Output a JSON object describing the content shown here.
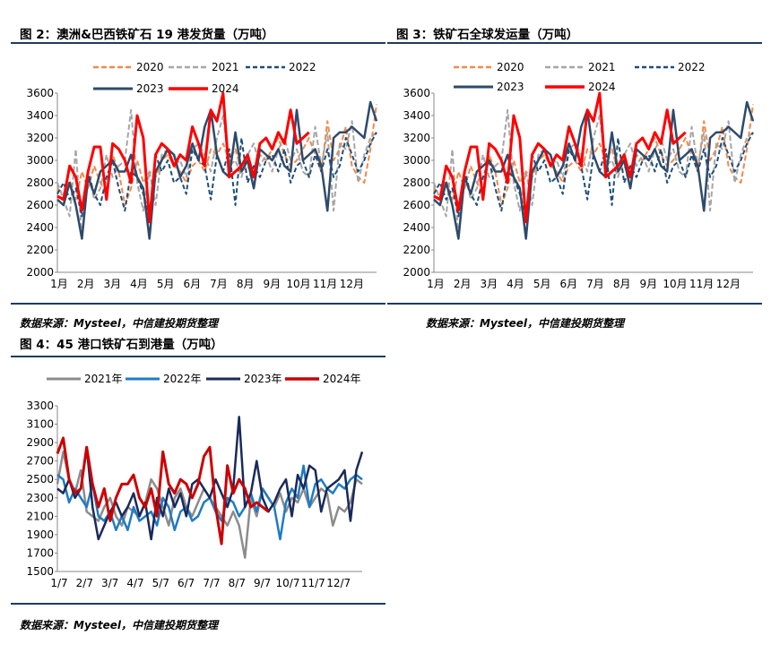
{
  "figures": [
    {
      "id": "fig2",
      "title": "图 2：澳洲&巴西铁矿石 19 港发货量（万吨）",
      "source": "数据来源：Mysteel，中信建投期货整理"
    },
    {
      "id": "fig3",
      "title": "图 3：铁矿石全球发运量（万吨）",
      "source": "数据来源：Mysteel，中信建投期货整理"
    },
    {
      "id": "fig4",
      "title": "图 4：45 港口铁矿石到港量（万吨）",
      "source": "数据来源：Mysteel，中信建投期货整理"
    }
  ],
  "chart_data": [
    {
      "type": "line",
      "title": "图 2：澳洲&巴西铁矿石 19 港发货量（万吨）",
      "x_ticks": [
        "1月",
        "2月",
        "3月",
        "4月",
        "5月",
        "6月",
        "7月",
        "8月",
        "9月",
        "10月",
        "11月",
        "12月"
      ],
      "x_range": [
        1,
        53
      ],
      "ylim": [
        2000,
        3600
      ],
      "y_ticks": [
        2000,
        2200,
        2400,
        2600,
        2800,
        3000,
        3200,
        3400,
        3600
      ],
      "legend_placement": "top",
      "series": [
        {
          "name": "2020",
          "color": "#f08a4b",
          "dash": "6,3",
          "width": 2,
          "values": [
            2750,
            2700,
            2820,
            2650,
            2900,
            2750,
            2950,
            2800,
            2700,
            3050,
            2900,
            2600,
            2750,
            3000,
            2800,
            2900,
            2850,
            3000,
            3050,
            2950,
            2900,
            2800,
            2950,
            3000,
            2900,
            3100,
            3050,
            3150,
            3000,
            3100,
            2900,
            2950,
            2850,
            3050,
            3000,
            3100,
            3200,
            3050,
            2950,
            3000,
            3100,
            3200,
            3050,
            2900,
            3350,
            3000,
            3100,
            3300,
            2950,
            2850,
            2800,
            3100,
            3500
          ]
        },
        {
          "name": "2021",
          "color": "#a6a6a6",
          "dash": "6,3",
          "width": 2,
          "values": [
            2800,
            2650,
            2500,
            3100,
            2300,
            2900,
            2650,
            2750,
            3050,
            2850,
            2950,
            3000,
            3450,
            2800,
            2550,
            2900,
            2600,
            3050,
            3100,
            2950,
            3000,
            2850,
            3100,
            3150,
            3050,
            2900,
            3200,
            3400,
            2950,
            3000,
            2850,
            3050,
            3150,
            2950,
            3050,
            2900,
            3100,
            3200,
            3000,
            3100,
            2900,
            2850,
            3300,
            2950,
            3250,
            2550,
            3150,
            3100,
            3350,
            2800,
            3050,
            3200,
            3250
          ]
        },
        {
          "name": "2022",
          "color": "#1f4e79",
          "dash": "5,3",
          "width": 2,
          "values": [
            2700,
            2800,
            2650,
            2750,
            2500,
            2900,
            2700,
            2600,
            2850,
            3000,
            2750,
            2550,
            2900,
            2850,
            2700,
            2500,
            3050,
            2900,
            3000,
            2800,
            2850,
            2700,
            3100,
            3000,
            2950,
            2650,
            3050,
            2900,
            3100,
            2600,
            3200,
            2800,
            2950,
            2850,
            3000,
            3050,
            2900,
            3100,
            2800,
            2950,
            3000,
            2850,
            3050,
            2900,
            3100,
            2850,
            2950,
            3200,
            3050,
            2900,
            3000,
            3150,
            3250
          ]
        },
        {
          "name": "2023",
          "color": "#2e4a6b",
          "dash": "",
          "width": 2.5,
          "values": [
            2650,
            2600,
            2800,
            2600,
            2300,
            2850,
            2700,
            2900,
            2950,
            3000,
            2900,
            2900,
            3050,
            2850,
            2750,
            2300,
            2900,
            3000,
            3100,
            3050,
            2850,
            2950,
            3150,
            3000,
            3300,
            3450,
            3050,
            2900,
            2850,
            3250,
            2900,
            3000,
            2750,
            3100,
            3050,
            3000,
            3100,
            2950,
            2900,
            3450,
            3000,
            3050,
            3100,
            2950,
            2550,
            3200,
            3250,
            3250,
            3300,
            3250,
            3200,
            3520,
            3350
          ]
        },
        {
          "name": "2024",
          "color": "#ff0000",
          "dash": "",
          "width": 3,
          "values": [
            2680,
            2650,
            2950,
            2850,
            2550,
            2900,
            3120,
            3120,
            2650,
            3150,
            3100,
            3000,
            2800,
            3400,
            3200,
            2450,
            3050,
            3150,
            3100,
            2950,
            3050,
            3000,
            3300,
            3150,
            2950,
            3450,
            3350,
            3600,
            2850,
            2900,
            2950,
            3050,
            2850,
            3150,
            3200,
            3100,
            3250,
            3150,
            3450,
            3150,
            3200,
            3250
          ]
        }
      ]
    },
    {
      "type": "line",
      "title": "图 3：铁矿石全球发运量（万吨）",
      "x_ticks": [
        "1月",
        "2月",
        "3月",
        "4月",
        "5月",
        "6月",
        "7月",
        "8月",
        "9月",
        "10月",
        "11月",
        "12月"
      ],
      "x_range": [
        1,
        53
      ],
      "ylim": [
        2000,
        3600
      ],
      "y_ticks": [
        2000,
        2200,
        2400,
        2600,
        2800,
        3000,
        3200,
        3400,
        3600
      ],
      "legend_placement": "top",
      "series": [
        {
          "name": "2020",
          "color": "#f08a4b",
          "dash": "6,3",
          "width": 2,
          "values": [
            2750,
            2700,
            2820,
            2650,
            2900,
            2750,
            2950,
            2800,
            2700,
            3050,
            2900,
            2600,
            2750,
            3000,
            2800,
            2900,
            2850,
            3000,
            3050,
            2950,
            2900,
            2800,
            2950,
            3000,
            2900,
            3100,
            3050,
            3150,
            3000,
            3100,
            2900,
            2950,
            2850,
            3050,
            3000,
            3100,
            3200,
            3050,
            2950,
            3000,
            3100,
            3200,
            3050,
            2900,
            3350,
            3000,
            3100,
            3300,
            2950,
            2850,
            2800,
            3100,
            3500
          ]
        },
        {
          "name": "2021",
          "color": "#a6a6a6",
          "dash": "6,3",
          "width": 2,
          "values": [
            2800,
            2650,
            2500,
            3100,
            2300,
            2900,
            2650,
            2750,
            3050,
            2850,
            2950,
            3000,
            3450,
            2800,
            2550,
            2900,
            2600,
            3050,
            3100,
            2950,
            3000,
            2850,
            3100,
            3150,
            3050,
            2900,
            3200,
            3400,
            2950,
            3000,
            2850,
            3050,
            3150,
            2950,
            3050,
            2900,
            3100,
            3200,
            3000,
            3100,
            2900,
            2850,
            3300,
            2950,
            3250,
            2550,
            3150,
            3100,
            3350,
            2800,
            3050,
            3200,
            3250
          ]
        },
        {
          "name": "2022",
          "color": "#1f4e79",
          "dash": "5,3",
          "width": 2,
          "values": [
            2700,
            2800,
            2650,
            2750,
            2500,
            2900,
            2700,
            2600,
            2850,
            3000,
            2750,
            2550,
            2900,
            2850,
            2700,
            2500,
            3050,
            2900,
            3000,
            2800,
            2850,
            2700,
            3100,
            3000,
            2950,
            2650,
            3050,
            2900,
            3100,
            2600,
            3200,
            2800,
            2950,
            2850,
            3000,
            3050,
            2900,
            3100,
            2800,
            2950,
            3000,
            2850,
            3050,
            2900,
            3100,
            2850,
            2950,
            3200,
            3050,
            2900,
            3000,
            3150,
            3250
          ]
        },
        {
          "name": "2023",
          "color": "#2e4a6b",
          "dash": "",
          "width": 2.5,
          "values": [
            2650,
            2600,
            2800,
            2600,
            2300,
            2850,
            2700,
            2900,
            2950,
            3000,
            2900,
            2900,
            3050,
            2850,
            2750,
            2300,
            2900,
            3000,
            3100,
            3050,
            2850,
            2950,
            3150,
            3000,
            3300,
            3450,
            3050,
            2900,
            2850,
            3250,
            2900,
            3000,
            2750,
            3100,
            3050,
            3000,
            3100,
            2950,
            2900,
            3450,
            3000,
            3050,
            3100,
            2950,
            2550,
            3200,
            3250,
            3250,
            3300,
            3250,
            3200,
            3520,
            3350
          ]
        },
        {
          "name": "2024",
          "color": "#ff0000",
          "dash": "",
          "width": 3,
          "values": [
            2680,
            2650,
            2950,
            2850,
            2550,
            2900,
            3120,
            3120,
            2650,
            3150,
            3100,
            3000,
            2800,
            3400,
            3200,
            2450,
            3050,
            3150,
            3100,
            2950,
            3050,
            3000,
            3300,
            3150,
            2950,
            3450,
            3350,
            3600,
            2850,
            2900,
            2950,
            3050,
            2850,
            3150,
            3200,
            3100,
            3250,
            3150,
            3450,
            3150,
            3200,
            3250
          ]
        }
      ]
    },
    {
      "type": "line",
      "title": "图 4：45 港口铁矿石到港量（万吨）",
      "x_ticks": [
        "1/7",
        "2/7",
        "3/7",
        "4/7",
        "5/7",
        "6/7",
        "7/7",
        "8/7",
        "9/7",
        "10/7",
        "11/7",
        "12/7"
      ],
      "x_range": [
        1,
        53
      ],
      "ylim": [
        1500,
        3300
      ],
      "y_ticks": [
        1500,
        1700,
        1900,
        2100,
        2300,
        2500,
        2700,
        2900,
        3100,
        3300
      ],
      "legend_placement": "top",
      "series": [
        {
          "name": "2021年",
          "color": "#8c8c8c",
          "dash": "",
          "width": 2.5,
          "values": [
            2450,
            2800,
            2500,
            2350,
            2600,
            2150,
            2100,
            2050,
            2200,
            2300,
            2100,
            2000,
            2200,
            2150,
            2100,
            2250,
            2500,
            2400,
            2200,
            2000,
            2300,
            2400,
            2200,
            2100,
            2250,
            2400,
            2300,
            2200,
            2100,
            2000,
            2150,
            2000,
            1650,
            2300,
            2100,
            2400,
            2300,
            2200,
            2350,
            2150,
            2300,
            2250,
            2400,
            2200,
            2300,
            2400,
            2350,
            2000,
            2200,
            2150,
            2250,
            2500,
            2450
          ]
        },
        {
          "name": "2022年",
          "color": "#1f7bc4",
          "dash": "",
          "width": 2.5,
          "values": [
            2550,
            2500,
            2250,
            2400,
            2300,
            2200,
            2450,
            2100,
            2050,
            2150,
            1950,
            2100,
            1950,
            2200,
            2050,
            2100,
            2150,
            2000,
            2300,
            2200,
            1950,
            2150,
            2200,
            2050,
            2100,
            2250,
            2300,
            2150,
            2050,
            2300,
            2250,
            2100,
            2200,
            2350,
            2150,
            2400,
            2300,
            2200,
            1850,
            2250,
            2400,
            2300,
            2650,
            2200,
            2450,
            2500,
            2400,
            2350,
            2450,
            2400,
            2500,
            2550,
            2500
          ]
        },
        {
          "name": "2023年",
          "color": "#1a2a5a",
          "dash": "",
          "width": 2.5,
          "values": [
            2400,
            2350,
            2500,
            2300,
            2400,
            2850,
            2200,
            1850,
            2000,
            2150,
            2250,
            2100,
            2200,
            2350,
            2100,
            2250,
            1850,
            2300,
            2100,
            2400,
            2200,
            2350,
            2100,
            2450,
            2500,
            2400,
            2300,
            2500,
            2350,
            2200,
            2400,
            3180,
            2200,
            2350,
            2700,
            2300,
            2150,
            2250,
            2400,
            2500,
            2100,
            2550,
            2400,
            2650,
            2600,
            2150,
            2400,
            2450,
            2500,
            2600,
            2050,
            2600,
            2800
          ]
        },
        {
          "name": "2024年",
          "color": "#cc0000",
          "dash": "",
          "width": 3,
          "values": [
            2780,
            2950,
            2500,
            2350,
            2400,
            2850,
            2450,
            2200,
            2400,
            2050,
            2300,
            2450,
            2450,
            2550,
            2300,
            2200,
            2400,
            2100,
            2800,
            2450,
            2350,
            2500,
            2450,
            2300,
            2450,
            2750,
            2850,
            2200,
            1800,
            2650,
            2350,
            2500,
            2400,
            2200,
            2250,
            2200,
            2150
          ]
        }
      ]
    }
  ]
}
